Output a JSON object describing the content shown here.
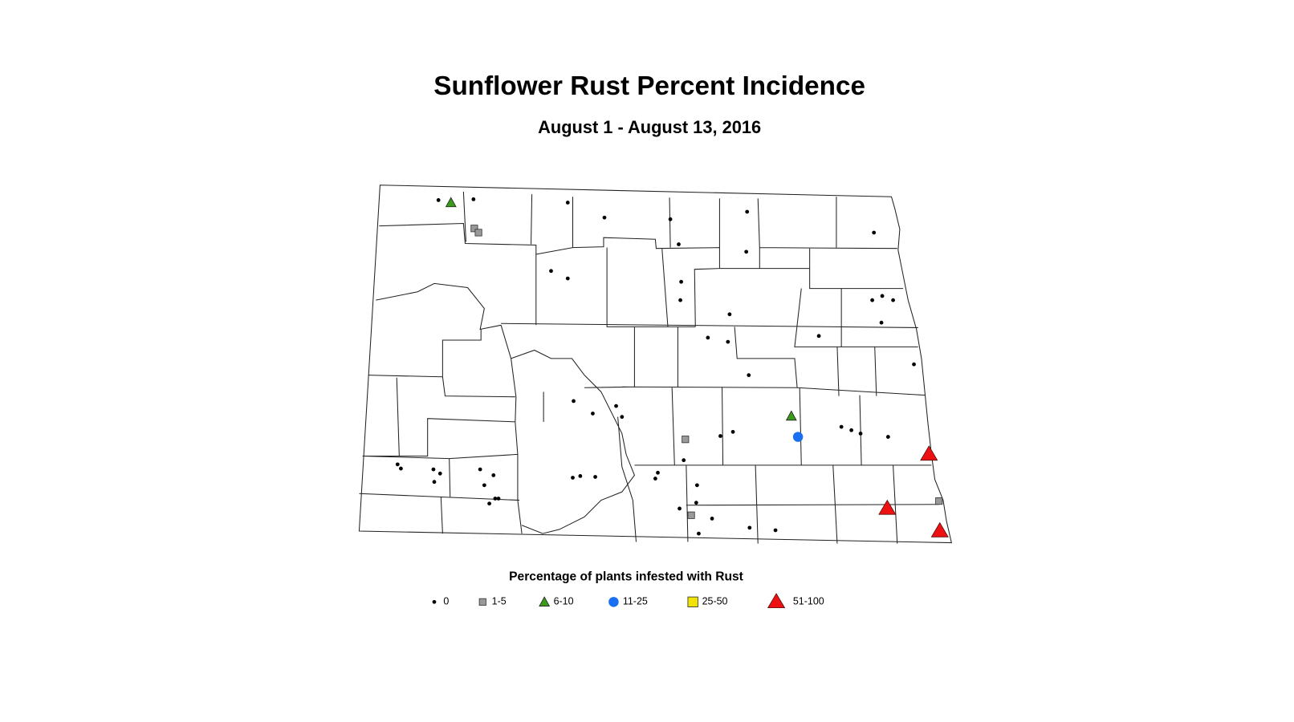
{
  "title": "Sunflower Rust Percent Incidence",
  "subtitle": "August 1 - August 13, 2016",
  "legend": {
    "title": "Percentage of plants infested with Rust",
    "items": [
      "0",
      "1-5",
      "6-10",
      "11-25",
      "25-50",
      "51-100"
    ]
  }
}
